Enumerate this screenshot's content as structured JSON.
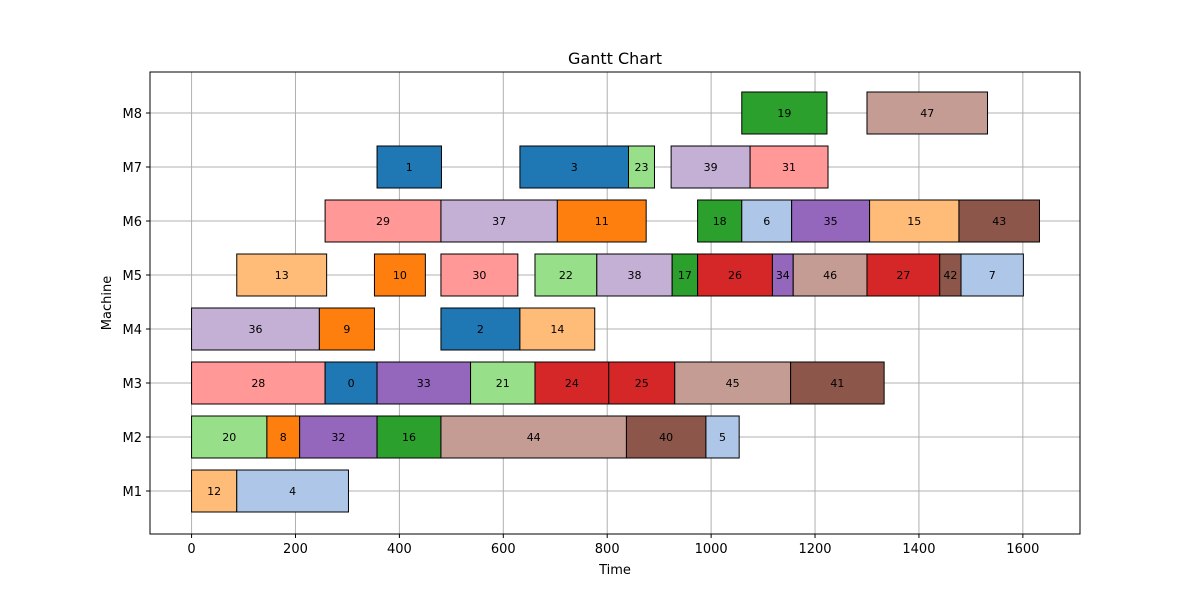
{
  "chart_data": {
    "type": "bar",
    "subtype": "gantt",
    "title": "Gantt Chart",
    "xlabel": "Time",
    "ylabel": "Machine",
    "xlim": [
      -80,
      1710
    ],
    "x_ticks": [
      0,
      200,
      400,
      600,
      800,
      1000,
      1200,
      1400,
      1600
    ],
    "categories": [
      "M1",
      "M2",
      "M3",
      "M4",
      "M5",
      "M6",
      "M7",
      "M8"
    ],
    "grid": true,
    "legend": "none",
    "tasks": [
      {
        "label": "12",
        "machine": "M1",
        "start": 0,
        "end": 87,
        "color": "#ffbb78"
      },
      {
        "label": "4",
        "machine": "M1",
        "start": 87,
        "end": 302,
        "color": "#aec7e8"
      },
      {
        "label": "20",
        "machine": "M2",
        "start": 0,
        "end": 145,
        "color": "#98df8a"
      },
      {
        "label": "8",
        "machine": "M2",
        "start": 145,
        "end": 208,
        "color": "#ff7f0e"
      },
      {
        "label": "32",
        "machine": "M2",
        "start": 208,
        "end": 357,
        "color": "#9467bd"
      },
      {
        "label": "16",
        "machine": "M2",
        "start": 357,
        "end": 480,
        "color": "#2ca02c"
      },
      {
        "label": "44",
        "machine": "M2",
        "start": 480,
        "end": 837,
        "color": "#c49c94"
      },
      {
        "label": "40",
        "machine": "M2",
        "start": 837,
        "end": 990,
        "color": "#8c564b"
      },
      {
        "label": "5",
        "machine": "M2",
        "start": 990,
        "end": 1054,
        "color": "#aec7e8"
      },
      {
        "label": "28",
        "machine": "M3",
        "start": 0,
        "end": 257,
        "color": "#ff9896"
      },
      {
        "label": "0",
        "machine": "M3",
        "start": 257,
        "end": 357,
        "color": "#1f77b4"
      },
      {
        "label": "33",
        "machine": "M3",
        "start": 357,
        "end": 537,
        "color": "#9467bd"
      },
      {
        "label": "21",
        "machine": "M3",
        "start": 537,
        "end": 661,
        "color": "#98df8a"
      },
      {
        "label": "24",
        "machine": "M3",
        "start": 661,
        "end": 803,
        "color": "#d62728"
      },
      {
        "label": "25",
        "machine": "M3",
        "start": 803,
        "end": 930,
        "color": "#d62728"
      },
      {
        "label": "45",
        "machine": "M3",
        "start": 930,
        "end": 1153,
        "color": "#c49c94"
      },
      {
        "label": "41",
        "machine": "M3",
        "start": 1153,
        "end": 1333,
        "color": "#8c564b"
      },
      {
        "label": "36",
        "machine": "M4",
        "start": 0,
        "end": 246,
        "color": "#c5b0d5"
      },
      {
        "label": "9",
        "machine": "M4",
        "start": 246,
        "end": 352,
        "color": "#ff7f0e"
      },
      {
        "label": "2",
        "machine": "M4",
        "start": 480,
        "end": 632,
        "color": "#1f77b4"
      },
      {
        "label": "14",
        "machine": "M4",
        "start": 632,
        "end": 776,
        "color": "#ffbb78"
      },
      {
        "label": "13",
        "machine": "M5",
        "start": 87,
        "end": 260,
        "color": "#ffbb78"
      },
      {
        "label": "10",
        "machine": "M5",
        "start": 352,
        "end": 450,
        "color": "#ff7f0e"
      },
      {
        "label": "30",
        "machine": "M5",
        "start": 480,
        "end": 628,
        "color": "#ff9896"
      },
      {
        "label": "22",
        "machine": "M5",
        "start": 661,
        "end": 780,
        "color": "#98df8a"
      },
      {
        "label": "38",
        "machine": "M5",
        "start": 780,
        "end": 925,
        "color": "#c5b0d5"
      },
      {
        "label": "17",
        "machine": "M5",
        "start": 925,
        "end": 974,
        "color": "#2ca02c"
      },
      {
        "label": "26",
        "machine": "M5",
        "start": 974,
        "end": 1118,
        "color": "#d62728"
      },
      {
        "label": "34",
        "machine": "M5",
        "start": 1118,
        "end": 1158,
        "color": "#9467bd"
      },
      {
        "label": "46",
        "machine": "M5",
        "start": 1158,
        "end": 1300,
        "color": "#c49c94"
      },
      {
        "label": "27",
        "machine": "M5",
        "start": 1300,
        "end": 1440,
        "color": "#d62728"
      },
      {
        "label": "42",
        "machine": "M5",
        "start": 1440,
        "end": 1481,
        "color": "#8c564b"
      },
      {
        "label": "7",
        "machine": "M5",
        "start": 1481,
        "end": 1601,
        "color": "#aec7e8"
      },
      {
        "label": "29",
        "machine": "M6",
        "start": 257,
        "end": 480,
        "color": "#ff9896"
      },
      {
        "label": "37",
        "machine": "M6",
        "start": 480,
        "end": 704,
        "color": "#c5b0d5"
      },
      {
        "label": "11",
        "machine": "M6",
        "start": 704,
        "end": 875,
        "color": "#ff7f0e"
      },
      {
        "label": "18",
        "machine": "M6",
        "start": 974,
        "end": 1059,
        "color": "#2ca02c"
      },
      {
        "label": "6",
        "machine": "M6",
        "start": 1059,
        "end": 1155,
        "color": "#aec7e8"
      },
      {
        "label": "35",
        "machine": "M6",
        "start": 1155,
        "end": 1305,
        "color": "#9467bd"
      },
      {
        "label": "15",
        "machine": "M6",
        "start": 1305,
        "end": 1477,
        "color": "#ffbb78"
      },
      {
        "label": "43",
        "machine": "M6",
        "start": 1477,
        "end": 1632,
        "color": "#8c564b"
      },
      {
        "label": "1",
        "machine": "M7",
        "start": 357,
        "end": 481,
        "color": "#1f77b4"
      },
      {
        "label": "3",
        "machine": "M7",
        "start": 632,
        "end": 841,
        "color": "#1f77b4"
      },
      {
        "label": "23",
        "machine": "M7",
        "start": 841,
        "end": 891,
        "color": "#98df8a"
      },
      {
        "label": "39",
        "machine": "M7",
        "start": 923,
        "end": 1075,
        "color": "#c5b0d5"
      },
      {
        "label": "31",
        "machine": "M7",
        "start": 1075,
        "end": 1225,
        "color": "#ff9896"
      },
      {
        "label": "19",
        "machine": "M8",
        "start": 1059,
        "end": 1223,
        "color": "#2ca02c"
      },
      {
        "label": "47",
        "machine": "M8",
        "start": 1300,
        "end": 1532,
        "color": "#c49c94"
      }
    ]
  }
}
